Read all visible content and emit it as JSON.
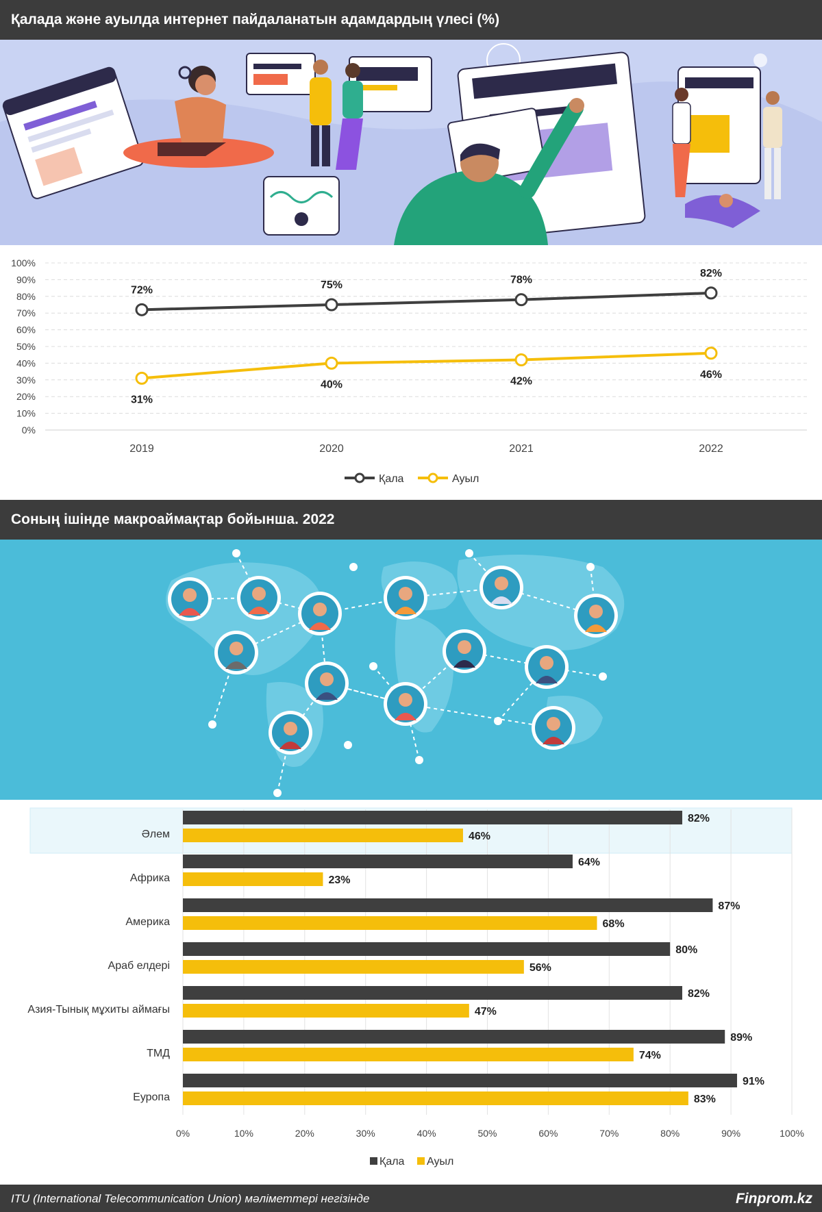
{
  "header1": {
    "title": "Қалада және ауылда интернет пайдаланатын адамдардың үлесі (%)"
  },
  "header2": {
    "title": "Соның ішінде макроаймақтар бойынша. 2022"
  },
  "footer": {
    "source": "ITU (International Telecommunication Union) мәліметтері негізінде",
    "brand": "Finprom.kz"
  },
  "colors": {
    "header_bg": "#3c3c3c",
    "city": "#3f3f3f",
    "village": "#f5be0b",
    "illus1_bg": "#c9d3f3",
    "illus2_bg": "#4bbcd9",
    "highlight": "#eaf7fb"
  },
  "chart_data": [
    {
      "type": "line",
      "x": [
        "2019",
        "2020",
        "2021",
        "2022"
      ],
      "series": [
        {
          "name": "Қала",
          "values": [
            72,
            75,
            78,
            82
          ],
          "labels": [
            "72%",
            "75%",
            "78%",
            "82%"
          ]
        },
        {
          "name": "Ауыл",
          "values": [
            31,
            40,
            42,
            46
          ],
          "labels": [
            "31%",
            "40%",
            "42%",
            "46%"
          ]
        }
      ],
      "yticks": [
        "0%",
        "10%",
        "20%",
        "30%",
        "40%",
        "50%",
        "60%",
        "70%",
        "80%",
        "90%",
        "100%"
      ],
      "ylim": [
        0,
        100
      ],
      "grid": true,
      "legend": "bottom"
    },
    {
      "type": "bar",
      "orientation": "horizontal",
      "categories": [
        "Әлем",
        "Африка",
        "Америка",
        "Араб елдері",
        "Азия-Тынық мұхиты аймағы",
        "ТМД",
        "Еуропа"
      ],
      "series": [
        {
          "name": "Қала",
          "values": [
            82,
            64,
            87,
            80,
            82,
            89,
            91
          ],
          "labels": [
            "82%",
            "64%",
            "87%",
            "80%",
            "82%",
            "89%",
            "91%"
          ]
        },
        {
          "name": "Ауыл",
          "values": [
            46,
            23,
            68,
            56,
            47,
            74,
            83
          ],
          "labels": [
            "46%",
            "23%",
            "68%",
            "56%",
            "47%",
            "74%",
            "83%"
          ]
        }
      ],
      "highlighted_category": "Әлем",
      "xticks": [
        "0%",
        "10%",
        "20%",
        "30%",
        "40%",
        "50%",
        "60%",
        "70%",
        "80%",
        "90%",
        "100%"
      ],
      "xlim": [
        0,
        100
      ],
      "grid": true,
      "legend": "bottom"
    }
  ]
}
